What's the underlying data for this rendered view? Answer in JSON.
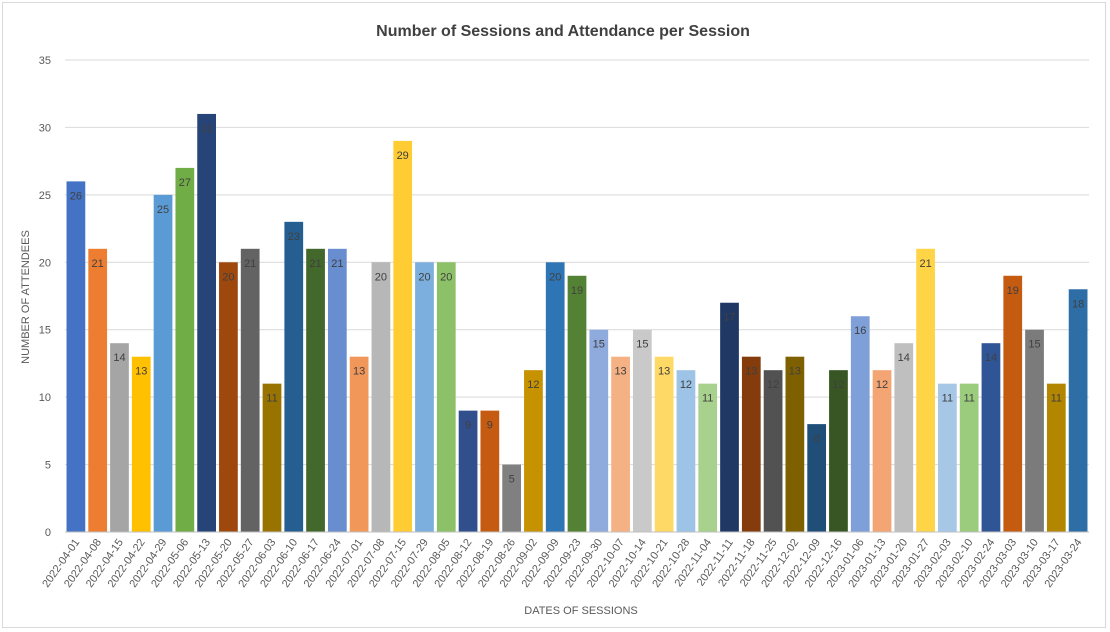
{
  "chart_data": {
    "type": "bar",
    "title": "Number of Sessions and Attendance per Session",
    "xlabel": "DATES OF SESSIONS",
    "ylabel": "NUMBER OF ATTENDEES",
    "ylim": [
      0,
      35
    ],
    "yticks": [
      "0",
      "5",
      "10",
      "15",
      "20",
      "25",
      "30",
      "35"
    ],
    "grid": true,
    "legend": "none",
    "categories": [
      "2022-04-01",
      "2022-04-08",
      "2022-04-15",
      "2022-04-22",
      "2022-04-29",
      "2022-05-06",
      "2022-05-13",
      "2022-05-20",
      "2022-05-27",
      "2022-06-03",
      "2022-06-10",
      "2022-06-17",
      "2022-06-24",
      "2022-07-01",
      "2022-07-08",
      "2022-07-15",
      "2022-07-29",
      "2022-08-05",
      "2022-08-12",
      "2022-08-19",
      "2022-08-26",
      "2022-09-02",
      "2022-09-09",
      "2022-09-23",
      "2022-09-30",
      "2022-10-07",
      "2022-10-14",
      "2022-10-21",
      "2022-10-28",
      "2022-11-04",
      "2022-11-11",
      "2022-11-18",
      "2022-11-25",
      "2022-12-02",
      "2022-12-09",
      "2022-12-16",
      "2023-01-06",
      "2023-01-13",
      "2023-01-20",
      "2023-01-27",
      "2023-02-03",
      "2023-02-10",
      "2023-02-24",
      "2023-03-03",
      "2023-03-10",
      "2023-03-17",
      "2023-03-24"
    ],
    "values": [
      26,
      21,
      14,
      13,
      25,
      27,
      31,
      20,
      21,
      11,
      23,
      21,
      21,
      13,
      20,
      29,
      20,
      20,
      9,
      9,
      5,
      12,
      20,
      19,
      15,
      13,
      15,
      13,
      12,
      11,
      17,
      13,
      12,
      13,
      8,
      12,
      16,
      12,
      14,
      21,
      11,
      11,
      14,
      19,
      15,
      11,
      18
    ],
    "data_labels": [
      "26",
      "21",
      "14",
      "13",
      "25",
      "27",
      "31",
      "20",
      "21",
      "11",
      "23",
      "21",
      "21",
      "13",
      "20",
      "29",
      "20",
      "20",
      "9",
      "9",
      "5",
      "12",
      "20",
      "19",
      "15",
      "13",
      "15",
      "13",
      "12",
      "11",
      "17",
      "13",
      "12",
      "13",
      "8",
      "12",
      "16",
      "12",
      "14",
      "21",
      "11",
      "11",
      "14",
      "19",
      "15",
      "11",
      "18"
    ],
    "colors": [
      "#4472c4",
      "#ed7d31",
      "#a5a5a5",
      "#ffc000",
      "#5b9bd5",
      "#70ad47",
      "#264478",
      "#9e480e",
      "#636363",
      "#997300",
      "#255e91",
      "#43682b",
      "#698ed0",
      "#f1975a",
      "#b7b7b7",
      "#ffcd33",
      "#7cafdd",
      "#8cc168",
      "#314f8c",
      "#c55a11",
      "#808080",
      "#c69200",
      "#2e75b6",
      "#548235",
      "#8faadc",
      "#f4b183",
      "#c9c9c9",
      "#ffd966",
      "#9dc3e6",
      "#a9d18e",
      "#203864",
      "#843c0c",
      "#525252",
      "#7f6000",
      "#1f4e79",
      "#375623",
      "#7f9fd8",
      "#f4a574",
      "#bfbfbf",
      "#ffd447",
      "#a7c7e7",
      "#9bcb7c",
      "#2f5597",
      "#c55a11",
      "#7b7b7b",
      "#b38600",
      "#2e6ea6"
    ]
  }
}
